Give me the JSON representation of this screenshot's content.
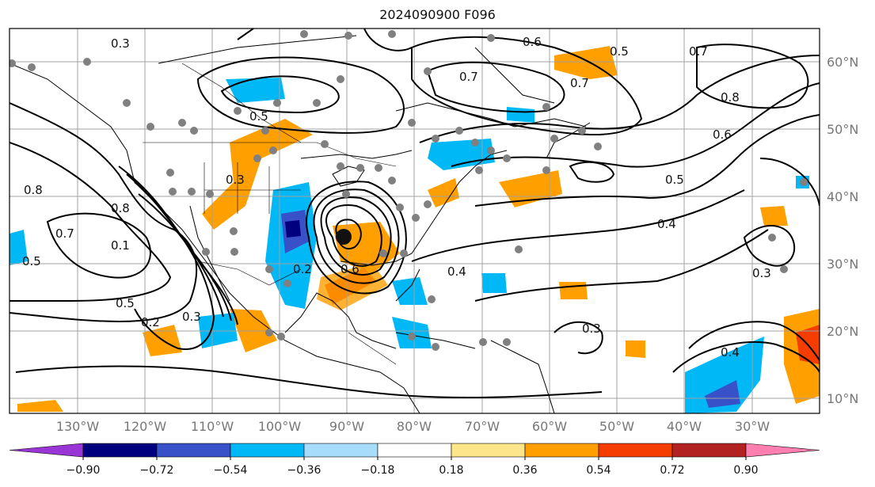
{
  "title": "2024090900 F096",
  "map": {
    "lon_labels": [
      "130°W",
      "120°W",
      "110°W",
      "100°W",
      "90°W",
      "80°W",
      "70°W",
      "60°W",
      "50°W",
      "40°W",
      "30°W"
    ],
    "lat_labels": [
      "60°N",
      "50°N",
      "40°N",
      "30°N",
      "20°N",
      "10°N"
    ],
    "contour_labels": [
      "0.3",
      "0.6",
      "0.7",
      "0.5",
      "0.7",
      "0.8",
      "0.7",
      "0.6",
      "0.5",
      "0.4",
      "0.2",
      "0.3",
      "0.8",
      "0.7",
      "0.1",
      "0.8",
      "0.3",
      "0.5",
      "0.5",
      "0.2",
      "0.3",
      "0.6",
      "0.5",
      "0.4",
      "0.3",
      "0.4"
    ]
  },
  "colorbar": {
    "ticks": [
      "−0.90",
      "−0.72",
      "−0.54",
      "−0.36",
      "−0.18",
      "0.18",
      "0.36",
      "0.54",
      "0.72",
      "0.90"
    ],
    "colors": [
      "#9a35d6",
      "#00007f",
      "#3850c8",
      "#00b8f5",
      "#a8dcfb",
      "#ffffff",
      "#fde68a",
      "#ff9f00",
      "#f53d00",
      "#b22222",
      "#ff7fb0"
    ]
  }
}
